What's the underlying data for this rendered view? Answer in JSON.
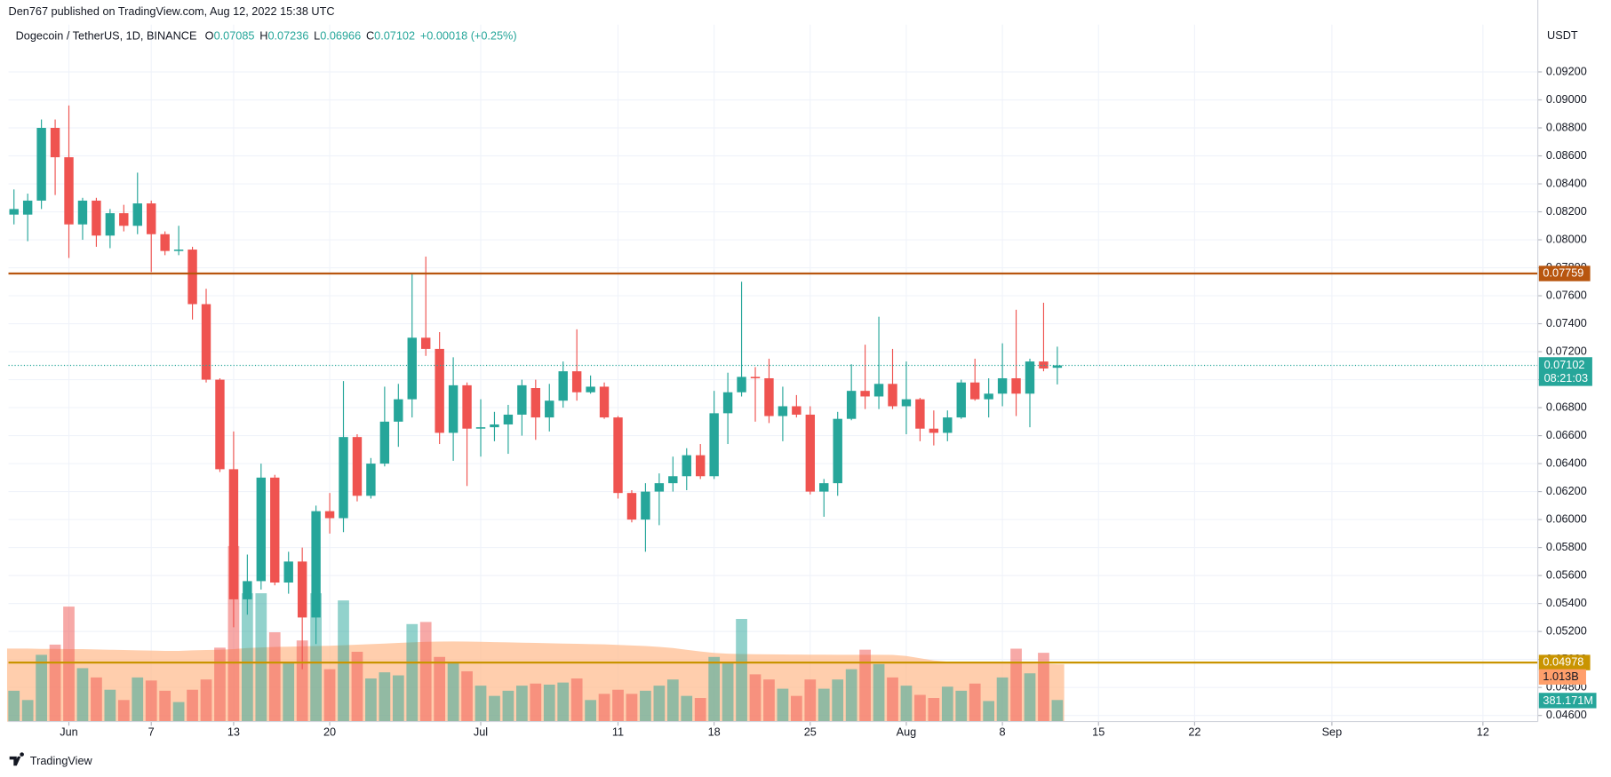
{
  "header": {
    "published": "Den767 published on TradingView.com, Aug 12, 2022 15:38 UTC",
    "symbol": "Dogecoin / TetherUS, 1D, BINANCE",
    "labels": [
      "O",
      "H",
      "L",
      "C"
    ],
    "change": "+0.00018 (+0.25%)"
  },
  "chart_data": {
    "type": "candlestick",
    "currency": "USDT",
    "open": [
      0.0818,
      0.0818,
      0.0828,
      0.088,
      0.0859,
      0.0811,
      0.0828,
      0.0803,
      0.0819,
      0.081,
      0.0826,
      0.0804,
      0.0792,
      0.0793,
      0.0754,
      0.07,
      0.0636,
      0.0543,
      0.0556,
      0.063,
      0.0555,
      0.057,
      0.053,
      0.0606,
      0.0601,
      0.0659,
      0.0617,
      0.064,
      0.067,
      0.0686,
      0.073,
      0.0722,
      0.0662,
      0.0696,
      0.0665,
      0.0666,
      0.0668,
      0.0675,
      0.0694,
      0.0673,
      0.0685,
      0.0706,
      0.0691,
      0.0695,
      0.0673,
      0.0619,
      0.06,
      0.062,
      0.0626,
      0.0631,
      0.0646,
      0.0631,
      0.0676,
      0.0691,
      0.0702,
      0.0701,
      0.0674,
      0.0681,
      0.0675,
      0.062,
      0.0626,
      0.0672,
      0.0692,
      0.0688,
      0.0697,
      0.0681,
      0.0686,
      0.0665,
      0.0662,
      0.0673,
      0.0698,
      0.0686,
      0.069,
      0.0701,
      0.069,
      0.0713,
      0.07085
    ],
    "high": [
      0.0836,
      0.0833,
      0.0886,
      0.0886,
      0.0896,
      0.083,
      0.083,
      0.0822,
      0.0825,
      0.0848,
      0.0828,
      0.0806,
      0.081,
      0.0795,
      0.0765,
      0.0701,
      0.0663,
      0.0575,
      0.064,
      0.0632,
      0.0577,
      0.058,
      0.061,
      0.0619,
      0.0699,
      0.0661,
      0.0644,
      0.0695,
      0.0697,
      0.0776,
      0.0788,
      0.0734,
      0.0716,
      0.0698,
      0.0686,
      0.0677,
      0.0682,
      0.07,
      0.07,
      0.0697,
      0.0713,
      0.0736,
      0.0703,
      0.0698,
      0.0674,
      0.0621,
      0.0626,
      0.0633,
      0.0645,
      0.0651,
      0.0654,
      0.0692,
      0.0705,
      0.077,
      0.0709,
      0.0715,
      0.0695,
      0.0689,
      0.0681,
      0.0629,
      0.0677,
      0.0711,
      0.0725,
      0.0745,
      0.0722,
      0.0713,
      0.0687,
      0.0678,
      0.0678,
      0.07,
      0.0715,
      0.0701,
      0.0726,
      0.075,
      0.0715,
      0.0755,
      0.07236
    ],
    "low": [
      0.0811,
      0.0799,
      0.0822,
      0.0832,
      0.0787,
      0.08,
      0.0795,
      0.0794,
      0.0806,
      0.0804,
      0.0777,
      0.0789,
      0.0789,
      0.0743,
      0.0698,
      0.0634,
      0.0523,
      0.0532,
      0.055,
      0.0553,
      0.0547,
      0.0493,
      0.0511,
      0.059,
      0.0591,
      0.0613,
      0.0615,
      0.0638,
      0.0652,
      0.0673,
      0.0717,
      0.0654,
      0.0642,
      0.0624,
      0.0645,
      0.0656,
      0.0647,
      0.066,
      0.0657,
      0.0663,
      0.068,
      0.0685,
      0.069,
      0.0672,
      0.0615,
      0.0598,
      0.0577,
      0.0596,
      0.062,
      0.0621,
      0.0629,
      0.0629,
      0.0654,
      0.0688,
      0.067,
      0.0669,
      0.0656,
      0.0673,
      0.0618,
      0.0602,
      0.0617,
      0.0671,
      0.0679,
      0.0679,
      0.0679,
      0.0661,
      0.0656,
      0.0653,
      0.0656,
      0.0672,
      0.0685,
      0.0673,
      0.0681,
      0.0674,
      0.0666,
      0.0706,
      0.06966
    ],
    "close": [
      0.0822,
      0.0828,
      0.088,
      0.0859,
      0.0811,
      0.0828,
      0.0803,
      0.0819,
      0.081,
      0.0826,
      0.0804,
      0.0792,
      0.0793,
      0.0754,
      0.07,
      0.0636,
      0.0543,
      0.0556,
      0.063,
      0.0555,
      0.057,
      0.053,
      0.0606,
      0.0601,
      0.0659,
      0.0617,
      0.064,
      0.067,
      0.0686,
      0.073,
      0.0722,
      0.0662,
      0.0696,
      0.0665,
      0.0666,
      0.0668,
      0.0675,
      0.0696,
      0.0673,
      0.0685,
      0.0706,
      0.0691,
      0.0695,
      0.0673,
      0.0619,
      0.06,
      0.062,
      0.0626,
      0.0631,
      0.0646,
      0.0631,
      0.0676,
      0.0691,
      0.0702,
      0.0701,
      0.0674,
      0.0681,
      0.0675,
      0.062,
      0.0626,
      0.0672,
      0.0692,
      0.0688,
      0.0697,
      0.0681,
      0.0686,
      0.0665,
      0.0662,
      0.0673,
      0.0698,
      0.0686,
      0.069,
      0.0701,
      0.069,
      0.0713,
      0.0708,
      0.07102
    ],
    "volume": [
      545,
      381,
      1180,
      1361,
      2033,
      944,
      780,
      563,
      381,
      780,
      726,
      545,
      345,
      563,
      744,
      1307,
      3104,
      2269,
      2269,
      1579,
      1053,
      1434,
      2269,
      926,
      2142,
      1234,
      762,
      871,
      817,
      1724,
      1761,
      1143,
      1053,
      889,
      635,
      454,
      545,
      635,
      672,
      653,
      690,
      762,
      381,
      490,
      563,
      490,
      545,
      635,
      744,
      454,
      417,
      1143,
      1053,
      1815,
      835,
      744,
      581,
      454,
      744,
      581,
      744,
      926,
      1271,
      1016,
      780,
      635,
      472,
      417,
      617,
      545,
      672,
      363,
      780,
      1289,
      853,
      1216,
      381.171
    ],
    "volume_ma": [
      1290,
      1290,
      1285,
      1285,
      1280,
      1280,
      1275,
      1270,
      1265,
      1260,
      1255,
      1250,
      1250,
      1260,
      1265,
      1270,
      1280,
      1300,
      1310,
      1320,
      1325,
      1330,
      1335,
      1340,
      1350,
      1360,
      1370,
      1380,
      1390,
      1400,
      1410,
      1415,
      1416,
      1414,
      1410,
      1405,
      1400,
      1395,
      1390,
      1385,
      1380,
      1375,
      1370,
      1365,
      1355,
      1345,
      1335,
      1320,
      1300,
      1270,
      1240,
      1215,
      1200,
      1195,
      1190,
      1188,
      1186,
      1185,
      1183,
      1182,
      1181,
      1180,
      1180,
      1180,
      1178,
      1160,
      1120,
      1080,
      1060,
      1050,
      1045,
      1040,
      1035,
      1030,
      1025,
      1020,
      1013
    ],
    "volume_label": "381.171M",
    "volume_ma_label": "1.013B",
    "up_color": "#26a69a",
    "down_color": "#ef5350",
    "volume_ma_color": "#ffb98a",
    "ylim": [
      0.04556,
      0.09538
    ],
    "yticks": [
      {
        "value": 0.046,
        "label": "0.04600"
      },
      {
        "value": 0.048,
        "label": "0.04800"
      },
      {
        "value": 0.05,
        "label": "0.05000"
      },
      {
        "value": 0.052,
        "label": "0.05200"
      },
      {
        "value": 0.054,
        "label": "0.05400"
      },
      {
        "value": 0.056,
        "label": "0.05600"
      },
      {
        "value": 0.058,
        "label": "0.05800"
      },
      {
        "value": 0.06,
        "label": "0.06000"
      },
      {
        "value": 0.062,
        "label": "0.06200"
      },
      {
        "value": 0.064,
        "label": "0.06400"
      },
      {
        "value": 0.066,
        "label": "0.06600"
      },
      {
        "value": 0.068,
        "label": "0.06800"
      },
      {
        "value": 0.07,
        "label": "0.07000"
      },
      {
        "value": 0.072,
        "label": "0.07200"
      },
      {
        "value": 0.074,
        "label": "0.07400"
      },
      {
        "value": 0.076,
        "label": "0.07600"
      },
      {
        "value": 0.078,
        "label": "0.07800"
      },
      {
        "value": 0.08,
        "label": "0.08000"
      },
      {
        "value": 0.082,
        "label": "0.08200"
      },
      {
        "value": 0.084,
        "label": "0.08400"
      },
      {
        "value": 0.086,
        "label": "0.08600"
      },
      {
        "value": 0.088,
        "label": "0.08800"
      },
      {
        "value": 0.09,
        "label": "0.09000"
      },
      {
        "value": 0.092,
        "label": "0.09200"
      }
    ],
    "xlim": [
      -0.4,
      111
    ],
    "xticks": [
      {
        "value": 4,
        "label": "Jun"
      },
      {
        "value": 10,
        "label": "7"
      },
      {
        "value": 16,
        "label": "13"
      },
      {
        "value": 23,
        "label": "20"
      },
      {
        "value": 34,
        "label": "Jul"
      },
      {
        "value": 44,
        "label": "11"
      },
      {
        "value": 51,
        "label": "18"
      },
      {
        "value": 58,
        "label": "25"
      },
      {
        "value": 65,
        "label": "Aug"
      },
      {
        "value": 72,
        "label": "8"
      },
      {
        "value": 79,
        "label": "15"
      },
      {
        "value": 86,
        "label": "22"
      },
      {
        "value": 96,
        "label": "Sep"
      },
      {
        "value": 107,
        "label": "12"
      }
    ],
    "hlines": [
      {
        "value": 0.07759,
        "color": "#b8560f"
      },
      {
        "value": 0.04978,
        "color": "#c99400"
      }
    ],
    "countdown": "08:21:03",
    "grid": true
  },
  "footer": {
    "brand": "TradingView"
  }
}
